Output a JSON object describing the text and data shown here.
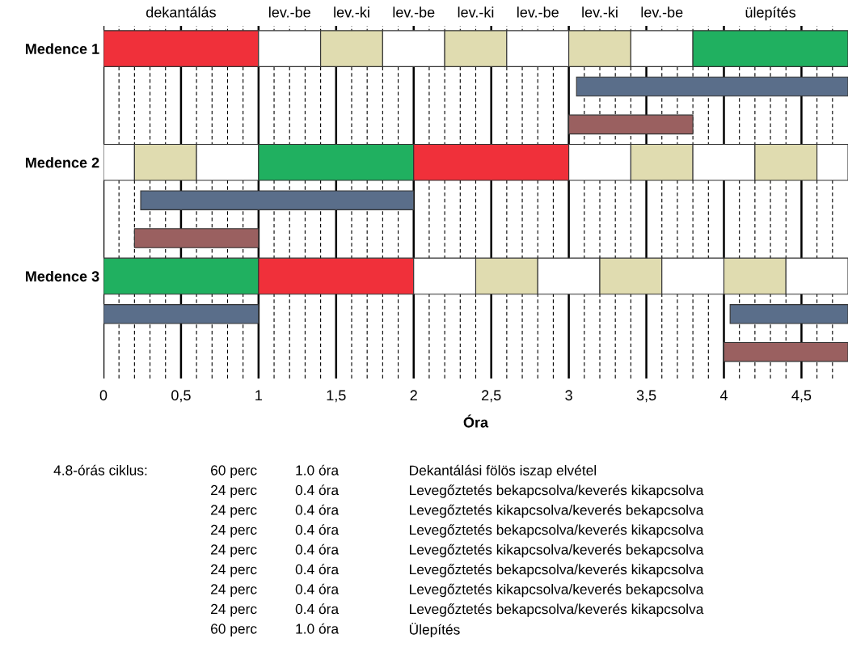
{
  "chart_data": {
    "type": "bar",
    "orientation": "horizontal",
    "xlabel": "Óra",
    "categories": [
      "Medence 1",
      null,
      null,
      "Medence 2",
      null,
      null,
      "Medence 3",
      null,
      null
    ],
    "xlim": [
      0,
      4.8
    ],
    "xticks": [
      0,
      {
        "value": 0.5,
        "label": "0,5"
      },
      1,
      {
        "value": 1.5,
        "label": "1,5"
      },
      2,
      {
        "value": 2.5,
        "label": "2,5"
      },
      3,
      {
        "value": 3.5,
        "label": "3,5"
      },
      4,
      {
        "value": 4.5,
        "label": "4,5"
      }
    ],
    "grid": "x",
    "series": [
      {
        "base": [
          0,
          3.05,
          3.0,
          0,
          0.24,
          0.2,
          0,
          0,
          4.0
        ],
        "values": [
          1,
          1.75,
          0.8,
          0.2,
          1.76,
          0.8,
          1,
          1,
          0.8
        ],
        "colors": [
          "#f0303a",
          "#5a6e8a",
          "#9a6060",
          "#ffffff",
          "#5a6e8a",
          "#9a6060",
          "#20b060",
          "#5a6e8a",
          "#9a6060"
        ]
      },
      {
        "base": [
          1,
          null,
          null,
          0.2,
          null,
          null,
          1,
          4.04,
          null
        ],
        "values": [
          0.4,
          null,
          null,
          0.4,
          null,
          null,
          1,
          0.76,
          null
        ],
        "colors": [
          "#ffffff",
          null,
          null,
          "#e0dcb0",
          null,
          null,
          "#f0303a",
          "#5a6e8a",
          null
        ]
      },
      {
        "base": [
          1.4,
          null,
          null,
          0.6,
          null,
          null,
          2,
          null,
          null
        ],
        "values": [
          0.4,
          null,
          null,
          0.4,
          null,
          null,
          0.4,
          null,
          null
        ],
        "colors": [
          "#e0dcb0",
          null,
          null,
          "#ffffff",
          null,
          null,
          "#ffffff",
          null,
          null
        ]
      },
      {
        "base": [
          1.8,
          null,
          null,
          1,
          null,
          null,
          2.4,
          null,
          null
        ],
        "values": [
          0.4,
          null,
          null,
          1,
          null,
          null,
          0.4,
          null,
          null
        ],
        "colors": [
          "#ffffff",
          null,
          null,
          "#20b060",
          null,
          null,
          "#e0dcb0",
          null,
          null
        ]
      },
      {
        "base": [
          2.2,
          null,
          null,
          2,
          null,
          null,
          2.8,
          null,
          null
        ],
        "values": [
          0.4,
          null,
          null,
          1,
          null,
          null,
          0.4,
          null,
          null
        ],
        "colors": [
          "#e0dcb0",
          null,
          null,
          "#f0303a",
          null,
          null,
          "#ffffff",
          null,
          null
        ]
      },
      {
        "base": [
          2.6,
          null,
          null,
          3,
          null,
          null,
          3.2,
          null,
          null
        ],
        "values": [
          0.4,
          null,
          null,
          0.4,
          null,
          null,
          0.4,
          null,
          null
        ],
        "colors": [
          "#ffffff",
          null,
          null,
          "#ffffff",
          null,
          null,
          "#e0dcb0",
          null,
          null
        ]
      },
      {
        "base": [
          3,
          null,
          null,
          3.4,
          null,
          null,
          3.6,
          null,
          null
        ],
        "values": [
          0.4,
          null,
          null,
          0.4,
          null,
          null,
          0.4,
          null,
          null
        ],
        "colors": [
          "#e0dcb0",
          null,
          null,
          "#e0dcb0",
          null,
          null,
          "#ffffff",
          null,
          null
        ]
      },
      {
        "base": [
          3.4,
          null,
          null,
          3.8,
          null,
          null,
          4.0,
          null,
          null
        ],
        "values": [
          0.4,
          null,
          null,
          0.4,
          null,
          null,
          0.4,
          null,
          null
        ],
        "colors": [
          "#ffffff",
          null,
          null,
          "#ffffff",
          null,
          null,
          "#e0dcb0",
          null,
          null
        ]
      },
      {
        "base": [
          3.8,
          null,
          null,
          4.2,
          null,
          null,
          4.4,
          null,
          null
        ],
        "values": [
          1,
          null,
          null,
          0.4,
          null,
          null,
          0.4,
          null,
          null
        ],
        "colors": [
          "#20b060",
          null,
          null,
          "#e0dcb0",
          null,
          null,
          "#ffffff",
          null,
          null
        ]
      },
      {
        "base": [
          null,
          null,
          null,
          4.6,
          null,
          null,
          null,
          null,
          null
        ],
        "values": [
          null,
          null,
          null,
          0.2,
          null,
          null,
          null,
          null,
          null
        ],
        "colors": [
          null,
          null,
          null,
          "#ffffff",
          null,
          null,
          null,
          null,
          null
        ]
      }
    ],
    "ref_lines": [
      {
        "axis": "x",
        "value": 0.1,
        "line_style": "dashed"
      },
      {
        "axis": "x",
        "value": 0.2,
        "line_style": "dashed"
      },
      {
        "axis": "x",
        "value": 0.3,
        "line_style": "dashed"
      },
      {
        "axis": "x",
        "value": 0.4,
        "line_style": "dashed"
      },
      {
        "axis": "x",
        "value": 0.6,
        "line_style": "dashed"
      },
      {
        "axis": "x",
        "value": 0.7,
        "line_style": "dashed"
      },
      {
        "axis": "x",
        "value": 0.8,
        "line_style": "dashed"
      },
      {
        "axis": "x",
        "value": 0.9,
        "line_style": "dashed"
      },
      {
        "axis": "x",
        "value": 1.1,
        "line_style": "dashed"
      },
      {
        "axis": "x",
        "value": 1.2,
        "line_style": "dashed"
      },
      {
        "axis": "x",
        "value": 1.3,
        "line_style": "dashed"
      },
      {
        "axis": "x",
        "value": 1.4,
        "line_style": "dashed"
      },
      {
        "axis": "x",
        "value": 1.6,
        "line_style": "dashed"
      },
      {
        "axis": "x",
        "value": 1.7,
        "line_style": "dashed"
      },
      {
        "axis": "x",
        "value": 1.8,
        "line_style": "dashed"
      },
      {
        "axis": "x",
        "value": 1.9,
        "line_style": "dashed"
      },
      {
        "axis": "x",
        "value": 2.1,
        "line_style": "dashed"
      },
      {
        "axis": "x",
        "value": 2.2,
        "line_style": "dashed"
      },
      {
        "axis": "x",
        "value": 2.3,
        "line_style": "dashed"
      },
      {
        "axis": "x",
        "value": 2.4,
        "line_style": "dashed"
      },
      {
        "axis": "x",
        "value": 2.6,
        "line_style": "dashed"
      },
      {
        "axis": "x",
        "value": 2.7,
        "line_style": "dashed"
      },
      {
        "axis": "x",
        "value": 2.8,
        "line_style": "dashed"
      },
      {
        "axis": "x",
        "value": 2.9,
        "line_style": "dashed"
      },
      {
        "axis": "x",
        "value": 3.1,
        "line_style": "dashed"
      },
      {
        "axis": "x",
        "value": 3.2,
        "line_style": "dashed"
      },
      {
        "axis": "x",
        "value": 3.3,
        "line_style": "dashed"
      },
      {
        "axis": "x",
        "value": 3.4,
        "line_style": "dashed"
      },
      {
        "axis": "x",
        "value": 3.6,
        "line_style": "dashed"
      },
      {
        "axis": "x",
        "value": 3.7,
        "line_style": "dashed"
      },
      {
        "axis": "x",
        "value": 3.8,
        "line_style": "dashed"
      },
      {
        "axis": "x",
        "value": 3.9,
        "line_style": "dashed"
      },
      {
        "axis": "x",
        "value": 4.1,
        "line_style": "dashed"
      },
      {
        "axis": "x",
        "value": 4.2,
        "line_style": "dashed"
      },
      {
        "axis": "x",
        "value": 4.3,
        "line_style": "dashed"
      },
      {
        "axis": "x",
        "value": 4.4,
        "line_style": "dashed"
      },
      {
        "axis": "x",
        "value": 4.6,
        "line_style": "dashed"
      },
      {
        "axis": "x",
        "value": 4.7,
        "line_style": "dashed"
      }
    ],
    "annotations": [
      "dekantálás",
      "lev.-be",
      "lev.-ki",
      "lev.-be",
      "lev.-ki",
      "lev.-be",
      "lev.-ki",
      "lev.-be",
      "ülepítés",
      "4.8-órás ciklus:",
      "60 perc",
      "1.0 óra",
      "Dekantálási fölös iszap elvétel",
      "24 perc",
      "0.4 óra",
      "Levegőztetés bekapcsolva/keverés kikapcsolva",
      "24 perc",
      "0.4 óra",
      "Levegőztetés kikapcsolva/keverés bekapcsolva",
      "24 perc",
      "0.4 óra",
      "Levegőztetés bekapcsolva/keverés kikapcsolva",
      "24 perc",
      "0.4 óra",
      "Levegőztetés kikapcsolva/keverés bekapcsolva",
      "24 perc",
      "0.4 óra",
      "Levegőztetés bekapcsolva/keverés kikapcsolva",
      "24 perc",
      "0.4 óra",
      "Levegőztetés kikapcsolva/keverés bekapcsolva",
      "24 perc",
      "0.4 óra",
      "Levegőztetés bekapcsolva/keverés kikapcsolva",
      "60 perc",
      "1.0 óra",
      "Ülepítés"
    ]
  }
}
